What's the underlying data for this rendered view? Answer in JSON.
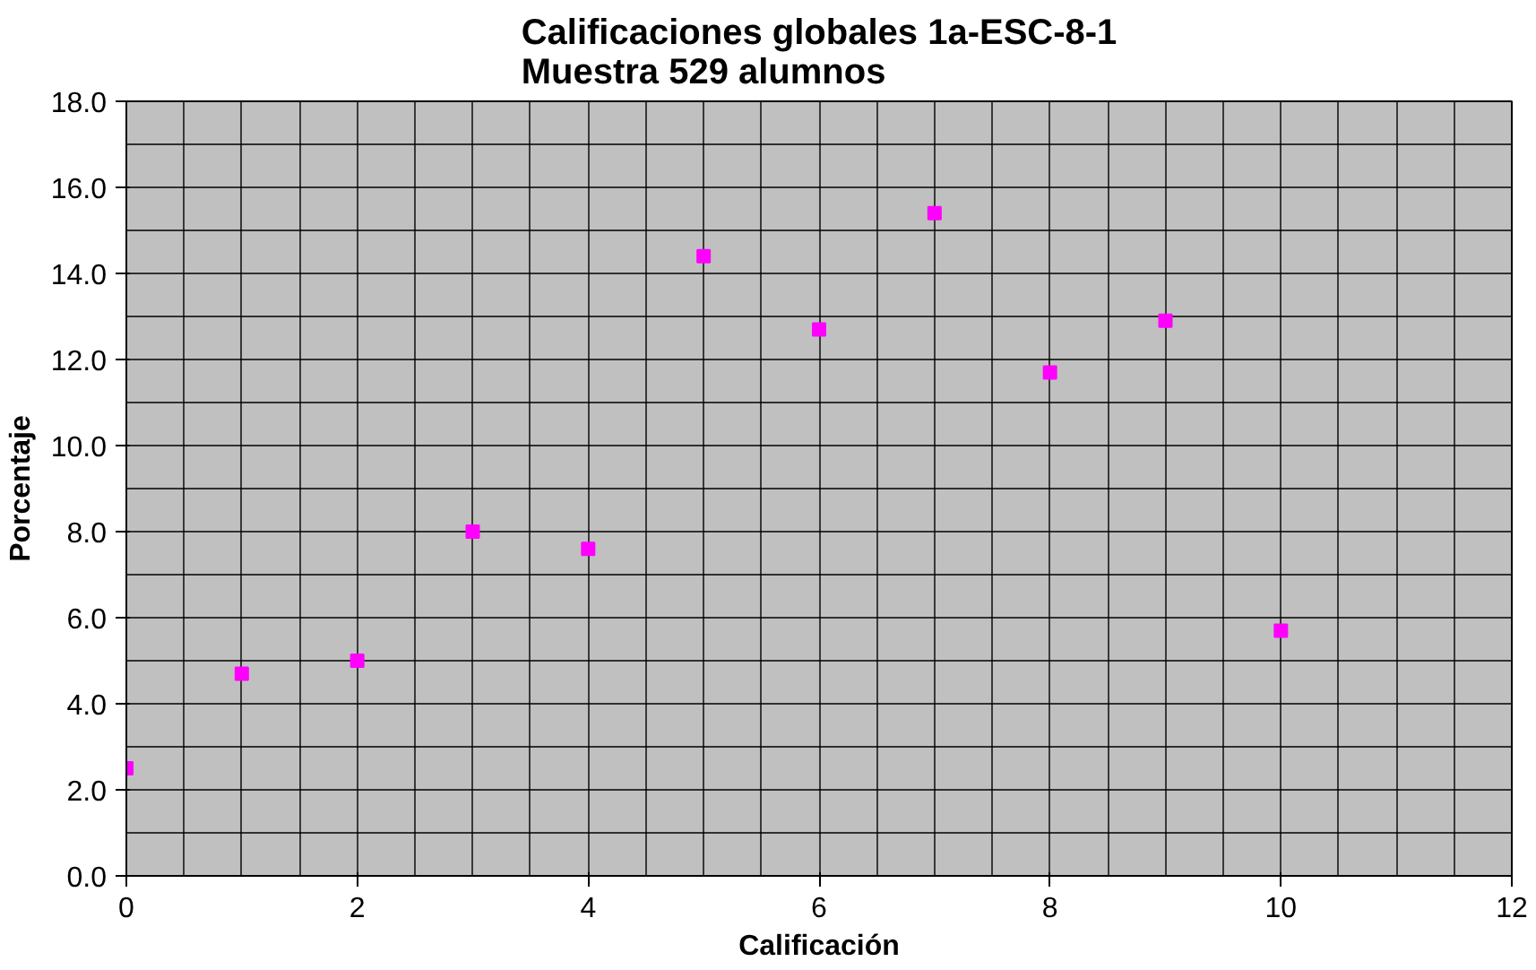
{
  "chart_data": {
    "type": "scatter",
    "title": "Calificaciones globales 1a-ESC-8-1\nMuestra 529 alumnos",
    "xlabel": "Calificación",
    "ylabel": "Porcentaje",
    "x": [
      0,
      1,
      2,
      3,
      4,
      5,
      6,
      7,
      8,
      9,
      10
    ],
    "series": [
      {
        "color": "#ff00ff",
        "values": [
          2.5,
          4.7,
          5.0,
          8.0,
          7.6,
          14.4,
          12.7,
          15.4,
          11.7,
          12.9,
          5.7
        ]
      }
    ],
    "xlim": [
      0,
      12
    ],
    "xticks": [
      0,
      2,
      4,
      6,
      8,
      10,
      12
    ],
    "ylim": [
      0,
      18
    ],
    "yticks": [
      {
        "value": 0,
        "label": "0.0"
      },
      {
        "value": 2,
        "label": "2.0"
      },
      {
        "value": 4,
        "label": "4.0"
      },
      {
        "value": 6,
        "label": "6.0"
      },
      {
        "value": 8,
        "label": "8.0"
      },
      {
        "value": 10,
        "label": "10.0"
      },
      {
        "value": 12,
        "label": "12.0"
      },
      {
        "value": 14,
        "label": "14.0"
      },
      {
        "value": 16,
        "label": "16.0"
      },
      {
        "value": 18,
        "label": "18.0"
      }
    ],
    "grid": true,
    "marker": "square"
  }
}
